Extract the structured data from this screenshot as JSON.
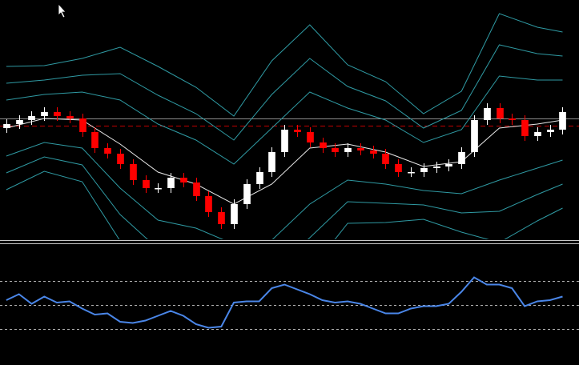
{
  "chart_data": [
    {
      "type": "candlestick",
      "open": [
        140,
        145,
        150,
        155,
        160,
        155,
        152,
        135,
        115,
        108,
        95,
        75,
        65,
        65,
        78,
        72,
        55,
        35,
        20,
        45,
        70,
        85,
        110,
        138,
        135,
        122,
        115,
        110,
        115,
        112,
        108,
        95,
        85,
        85,
        90,
        92,
        95,
        110,
        150,
        165,
        152,
        150,
        130,
        135,
        138
      ],
      "high": [
        151,
        156,
        161,
        166,
        166,
        161,
        158,
        141,
        121,
        114,
        101,
        81,
        71,
        84,
        84,
        78,
        61,
        41,
        51,
        76,
        91,
        116,
        144,
        144,
        141,
        128,
        121,
        121,
        121,
        118,
        114,
        101,
        91,
        96,
        98,
        101,
        116,
        156,
        171,
        171,
        158,
        156,
        141,
        144,
        166
      ],
      "low": [
        134,
        139,
        144,
        149,
        149,
        146,
        129,
        109,
        102,
        89,
        69,
        59,
        59,
        59,
        66,
        49,
        29,
        14,
        14,
        39,
        64,
        79,
        104,
        129,
        116,
        109,
        104,
        104,
        106,
        102,
        89,
        79,
        79,
        79,
        84,
        86,
        89,
        104,
        144,
        146,
        144,
        124,
        124,
        129,
        132
      ],
      "close": [
        145,
        150,
        155,
        160,
        155,
        152,
        135,
        115,
        108,
        95,
        75,
        65,
        65,
        78,
        72,
        55,
        35,
        20,
        45,
        70,
        85,
        110,
        138,
        135,
        122,
        115,
        110,
        115,
        112,
        108,
        95,
        85,
        85,
        90,
        92,
        95,
        110,
        150,
        165,
        152,
        150,
        130,
        135,
        138,
        160
      ],
      "up_color": "#ffffff",
      "down_color": "#ff0000",
      "xlim": [
        -0.5,
        45.3
      ],
      "ylim": [
        0,
        300
      ],
      "hlines": [
        {
          "value": 152,
          "color": "#8c8c8c",
          "dashed": false
        },
        {
          "value": 143,
          "color": "#c00000",
          "dashed": true
        }
      ],
      "bands": {
        "x": [
          0,
          3,
          6,
          9,
          12,
          15,
          18,
          21,
          24,
          27,
          30,
          33,
          36,
          39,
          42,
          44
        ],
        "series": [
          {
            "color": "#e8e8e8",
            "values": [
              140,
              152,
              150,
              120,
              85,
              70,
              45,
              70,
              115,
              120,
              110,
              92,
              98,
              140,
              145,
              150
            ]
          },
          {
            "color": "#2f9aa3",
            "values": [
              175,
              182,
              185,
              175,
              145,
              125,
              95,
              140,
              185,
              165,
              150,
              122,
              138,
              205,
              200,
              200
            ]
          },
          {
            "color": "#2f9aa3",
            "values": [
              196,
              200,
              206,
              208,
              181,
              158,
              125,
              182,
              227,
              192,
              174,
              140,
              162,
              244,
              233,
              230
            ]
          },
          {
            "color": "#2f9aa3",
            "values": [
              217,
              218,
              227,
              241,
              217,
              191,
              155,
              224,
              269,
              219,
              198,
              158,
              186,
              283,
              266,
              260
            ]
          },
          {
            "color": "#2f9aa3",
            "values": [
              105,
              122,
              115,
              65,
              25,
              15,
              -5,
              0,
              45,
              75,
              70,
              62,
              58,
              75,
              90,
              100
            ]
          },
          {
            "color": "#2f9aa3",
            "values": [
              84,
              104,
              94,
              32,
              -11,
              -18,
              -35,
              -42,
              3,
              48,
              46,
              44,
              34,
              36,
              57,
              70
            ]
          },
          {
            "color": "#2f9aa3",
            "values": [
              63,
              86,
              73,
              -1,
              -47,
              -51,
              -65,
              -84,
              -39,
              21,
              22,
              26,
              10,
              -3,
              24,
              40
            ]
          }
        ]
      }
    },
    {
      "type": "line",
      "values": [
        54,
        59,
        51,
        57,
        52,
        53,
        47,
        42,
        43,
        36,
        35,
        37,
        41,
        45,
        41,
        34,
        31,
        32,
        52,
        53,
        53,
        64,
        67,
        63,
        59,
        54,
        52,
        53,
        51,
        47,
        43,
        43,
        47,
        49,
        49,
        51,
        61,
        73,
        67,
        67,
        64,
        49,
        53,
        54,
        57
      ],
      "color": "#4a86e8",
      "xlim": [
        -0.5,
        45.3
      ],
      "ylim": [
        0,
        100
      ],
      "levels": [
        70,
        50,
        30
      ],
      "level_color": "#b0b0b0"
    }
  ]
}
